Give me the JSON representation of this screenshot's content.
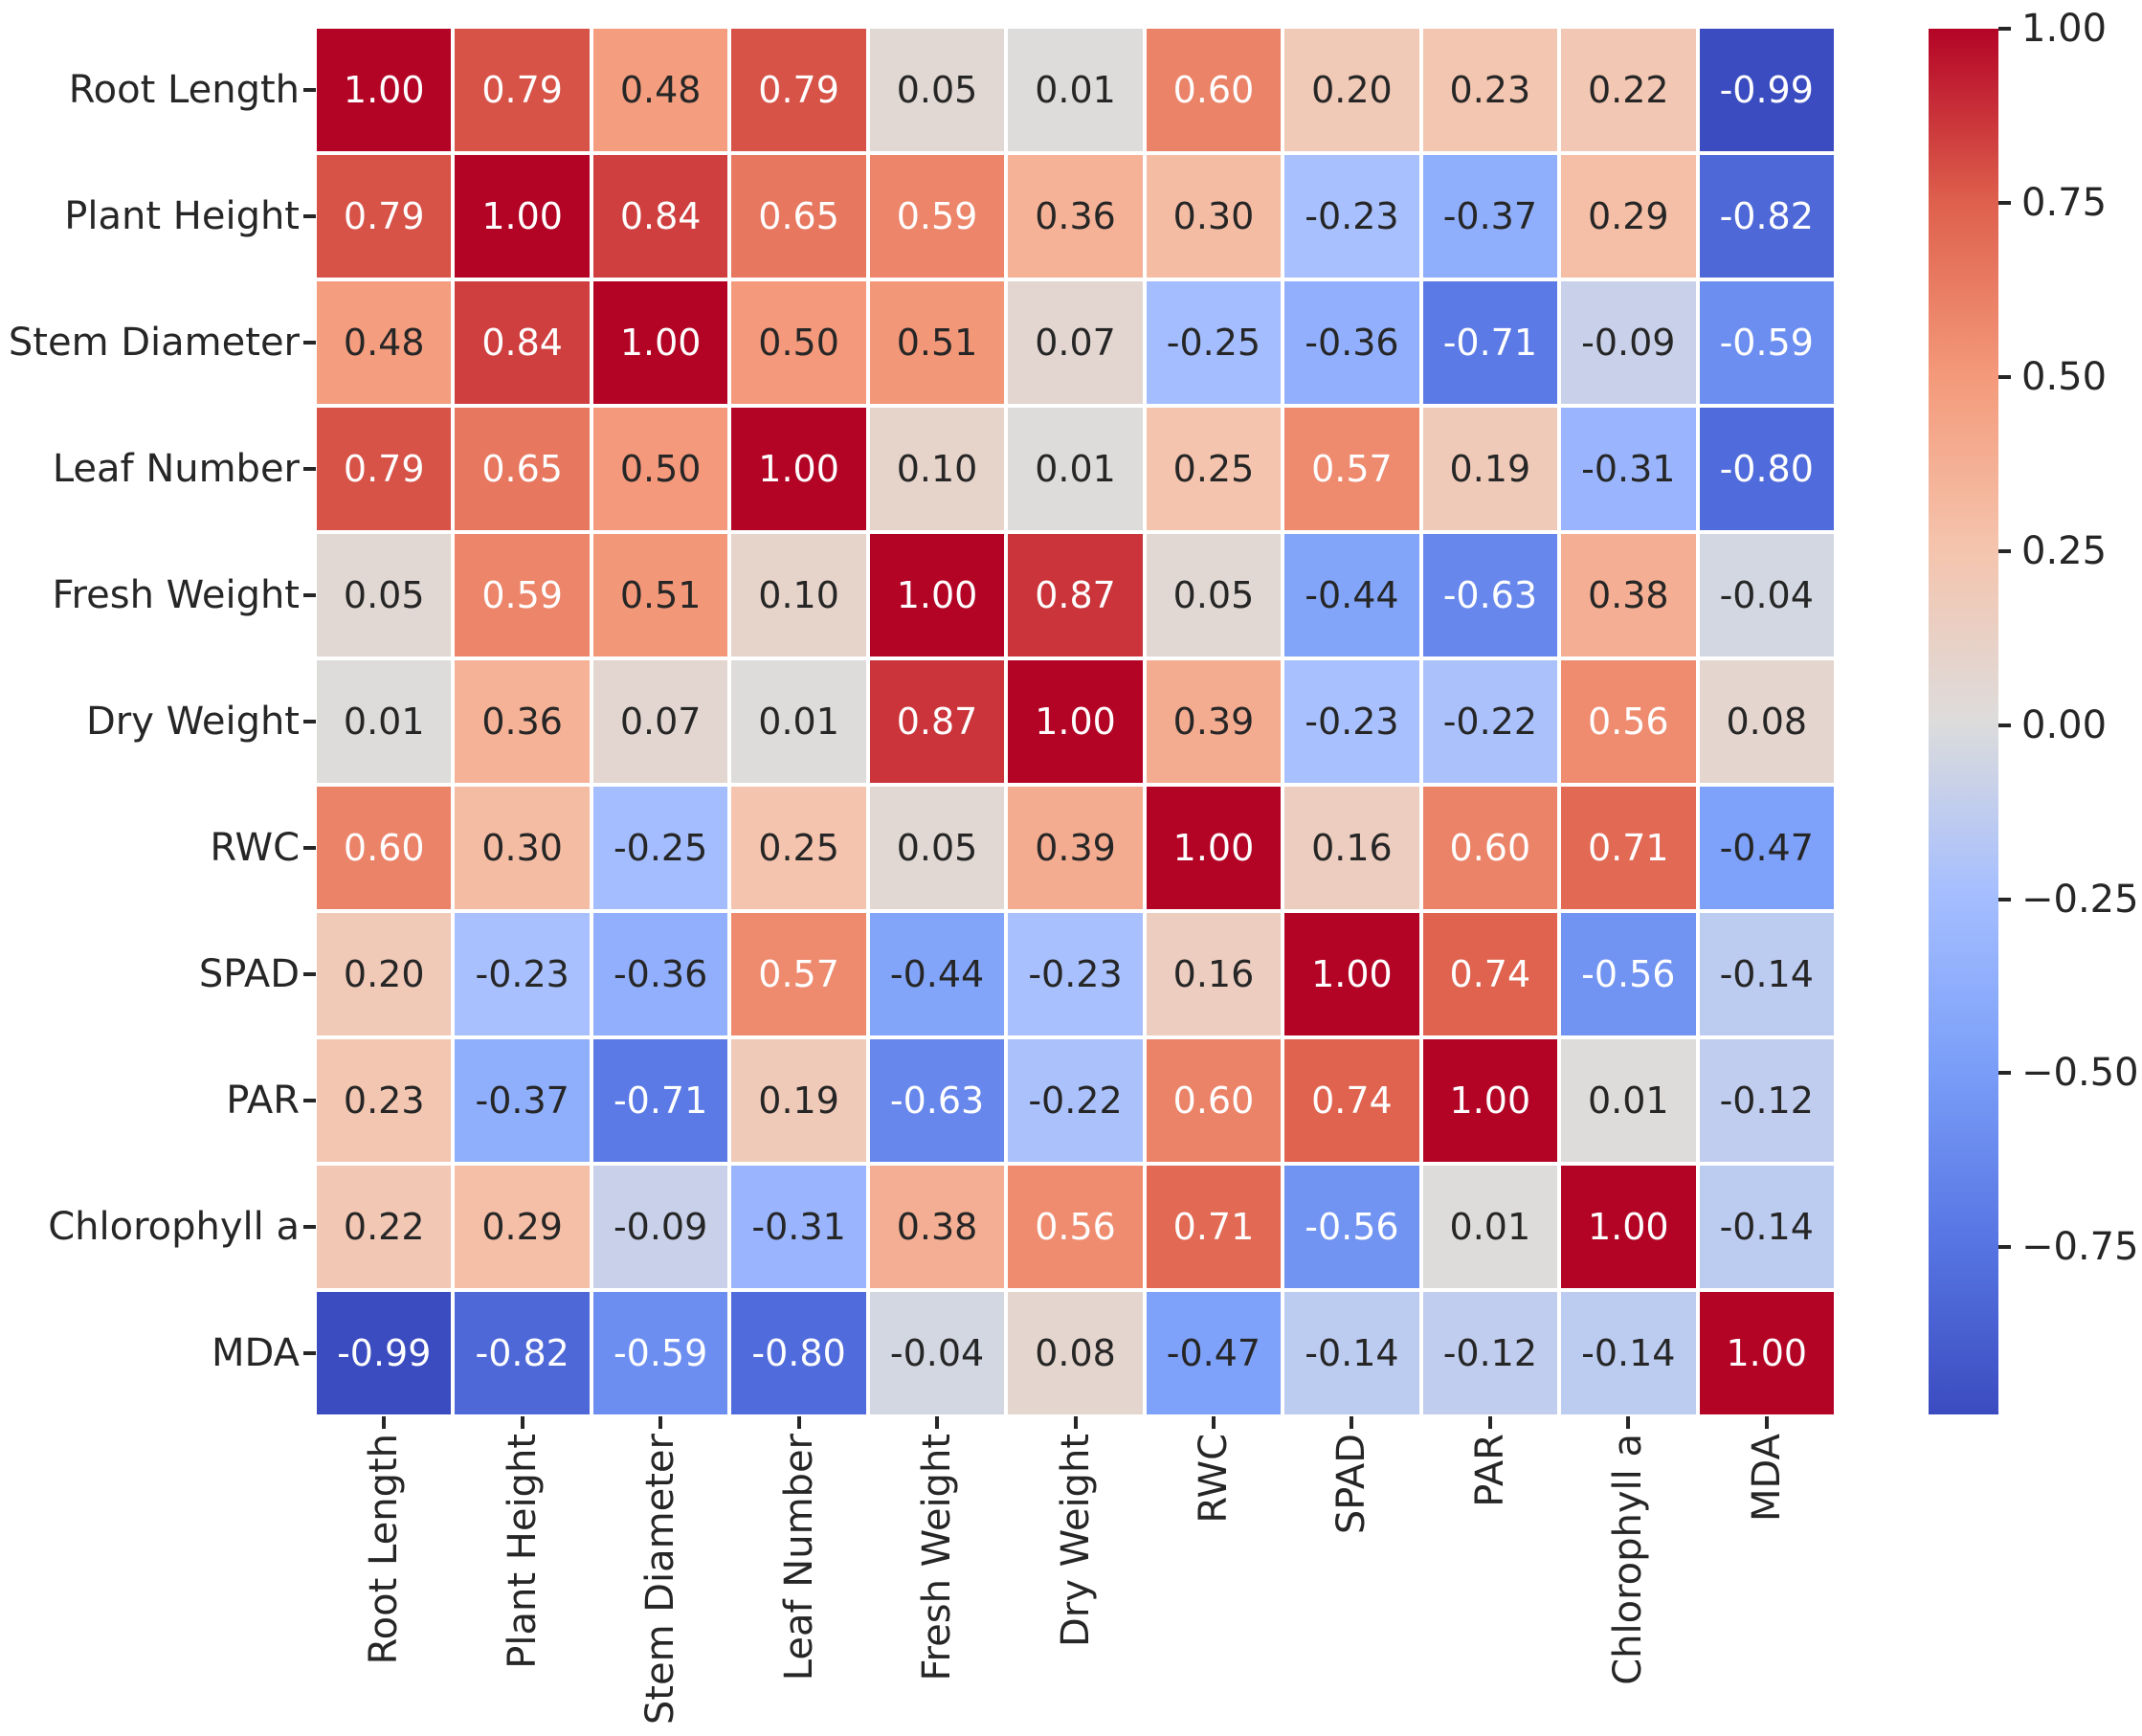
{
  "chart_data": {
    "type": "heatmap",
    "description": "correlation-matrix-heatmap",
    "variables": [
      "Root Length",
      "Plant Height",
      "Stem Diameter",
      "Leaf Number",
      "Fresh Weight",
      "Dry Weight",
      "RWC",
      "SPAD",
      "PAR",
      "Chlorophyll a",
      "MDA"
    ],
    "matrix": [
      [
        1.0,
        0.79,
        0.48,
        0.79,
        0.05,
        0.01,
        0.6,
        0.2,
        0.23,
        0.22,
        -0.99
      ],
      [
        0.79,
        1.0,
        0.84,
        0.65,
        0.59,
        0.36,
        0.3,
        -0.23,
        -0.37,
        0.29,
        -0.82
      ],
      [
        0.48,
        0.84,
        1.0,
        0.5,
        0.51,
        0.07,
        -0.25,
        -0.36,
        -0.71,
        -0.09,
        -0.59
      ],
      [
        0.79,
        0.65,
        0.5,
        1.0,
        0.1,
        0.01,
        0.25,
        0.57,
        0.19,
        -0.31,
        -0.8
      ],
      [
        0.05,
        0.59,
        0.51,
        0.1,
        1.0,
        0.87,
        0.05,
        -0.44,
        -0.63,
        0.38,
        -0.04
      ],
      [
        0.01,
        0.36,
        0.07,
        0.01,
        0.87,
        1.0,
        0.39,
        -0.23,
        -0.22,
        0.56,
        0.08
      ],
      [
        0.6,
        0.3,
        -0.25,
        0.25,
        0.05,
        0.39,
        1.0,
        0.16,
        0.6,
        0.71,
        -0.47
      ],
      [
        0.2,
        -0.23,
        -0.36,
        0.57,
        -0.44,
        -0.23,
        0.16,
        1.0,
        0.74,
        -0.56,
        -0.14
      ],
      [
        0.23,
        -0.37,
        -0.71,
        0.19,
        -0.63,
        -0.22,
        0.6,
        0.74,
        1.0,
        0.01,
        -0.12
      ],
      [
        0.22,
        0.29,
        -0.09,
        -0.31,
        0.38,
        0.56,
        0.71,
        -0.56,
        0.01,
        1.0,
        -0.14
      ],
      [
        -0.99,
        -0.82,
        -0.59,
        -0.8,
        -0.04,
        0.08,
        -0.47,
        -0.14,
        -0.12,
        -0.14,
        1.0
      ]
    ],
    "vmin": -0.99,
    "vmax": 1.0,
    "grid": false,
    "legend_position": "right-colorbar",
    "colormap": {
      "name": "coolwarm",
      "stops": [
        "#3b4cc0",
        "#5775e3",
        "#7a9ef8",
        "#a5beff",
        "#dddcdc",
        "#f5c4ad",
        "#f4997a",
        "#de604d",
        "#b40426"
      ]
    },
    "colorbar_ticks": [
      {
        "label": "1.00",
        "value": 1.0
      },
      {
        "label": "0.75",
        "value": 0.75
      },
      {
        "label": "0.50",
        "value": 0.5
      },
      {
        "label": "0.25",
        "value": 0.25
      },
      {
        "label": "0.00",
        "value": 0.0
      },
      {
        "label": "−0.25",
        "value": -0.25
      },
      {
        "label": "−0.50",
        "value": -0.5
      },
      {
        "label": "−0.75",
        "value": -0.75
      }
    ],
    "annotation_colors": {
      "light_text": "#ffffff",
      "dark_text": "#262626",
      "white_text_abs_threshold": 0.55
    }
  }
}
